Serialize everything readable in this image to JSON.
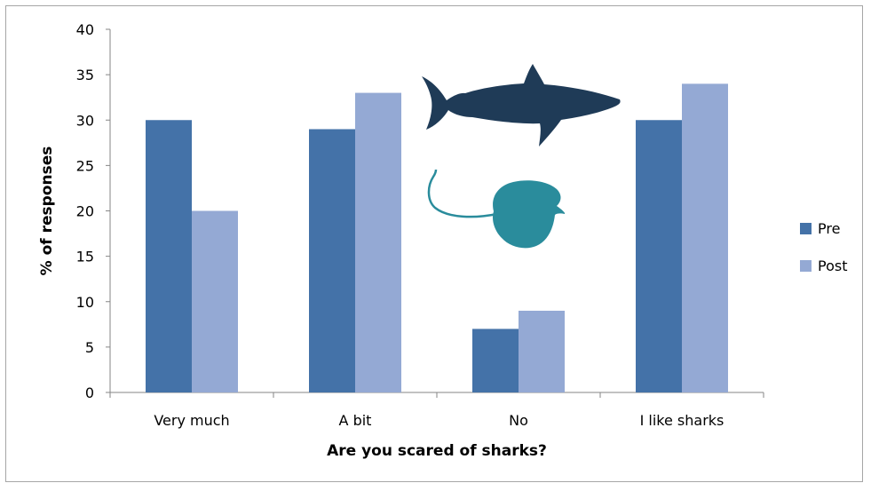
{
  "chart_data": {
    "type": "bar",
    "title": "",
    "xlabel": "Are you scared of sharks?",
    "ylabel": "% of responses",
    "categories": [
      "Very much",
      "A bit",
      "No",
      "I like sharks"
    ],
    "series": [
      {
        "name": "Pre",
        "values": [
          30,
          29,
          7,
          30
        ],
        "color": "#4472a8"
      },
      {
        "name": "Post",
        "values": [
          20,
          33,
          9,
          34
        ],
        "color": "#94a9d4"
      }
    ],
    "ylim": [
      0,
      40
    ],
    "yticks": [
      0,
      5,
      10,
      15,
      20,
      25,
      30,
      35,
      40
    ],
    "grid": false,
    "legend_position": "right",
    "decorations": {
      "shark_color": "#1f3b57",
      "stingray_color": "#2a8c9c"
    }
  }
}
